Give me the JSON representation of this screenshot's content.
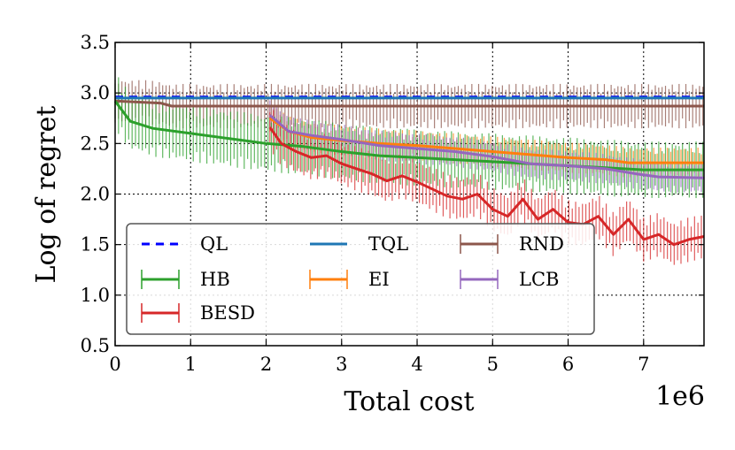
{
  "chart_data": {
    "type": "line",
    "title": "",
    "xlabel": "Total cost",
    "ylabel": "Log of regret",
    "x_multiplier_label": "1e6",
    "xlim": [
      0,
      7.8
    ],
    "ylim": [
      0.5,
      3.5
    ],
    "xticks": [
      0,
      1,
      2,
      3,
      4,
      5,
      6,
      7
    ],
    "yticks": [
      0.5,
      1.0,
      1.5,
      2.0,
      2.5,
      3.0,
      3.5
    ],
    "ytick_labels": [
      "0.5",
      "1.0",
      "1.5",
      "2.0",
      "2.5",
      "3.0",
      "3.5"
    ],
    "grid": true,
    "legend_position": "lower-left",
    "series": [
      {
        "name": "QL",
        "color": "#0000ff",
        "dashed": true,
        "x": [
          0,
          7.8
        ],
        "y": [
          2.96,
          2.96
        ]
      },
      {
        "name": "TQL",
        "color": "#1f77b4",
        "x": [
          0,
          7.8
        ],
        "y": [
          2.95,
          2.95
        ]
      },
      {
        "name": "RND",
        "color": "#8c564b",
        "x": [
          0,
          0.6,
          0.75,
          7.8
        ],
        "y": [
          2.92,
          2.9,
          2.87,
          2.87
        ],
        "error": 0.22
      },
      {
        "name": "HB",
        "color": "#2ca02c",
        "x": [
          0,
          0.2,
          0.5,
          1.0,
          1.5,
          1.8,
          2.0,
          2.5,
          3.0,
          3.5,
          4.0,
          4.5,
          5.0,
          5.5,
          6.0,
          6.5,
          7.0,
          7.8
        ],
        "y": [
          2.92,
          2.72,
          2.65,
          2.6,
          2.55,
          2.52,
          2.5,
          2.47,
          2.42,
          2.38,
          2.36,
          2.34,
          2.32,
          2.3,
          2.28,
          2.26,
          2.24,
          2.24
        ],
        "error": 0.28
      },
      {
        "name": "EI",
        "color": "#ff7f0e",
        "x": [
          2.05,
          2.3,
          2.6,
          3.0,
          3.5,
          4.0,
          4.5,
          5.0,
          5.5,
          6.0,
          6.5,
          6.8,
          7.8
        ],
        "y": [
          2.75,
          2.62,
          2.56,
          2.53,
          2.5,
          2.48,
          2.45,
          2.42,
          2.39,
          2.36,
          2.34,
          2.31,
          2.31
        ],
        "error": 0.15
      },
      {
        "name": "LCB",
        "color": "#9467bd",
        "x": [
          2.05,
          2.3,
          2.6,
          3.0,
          3.5,
          4.0,
          4.5,
          5.0,
          5.5,
          6.0,
          6.5,
          6.9,
          7.2,
          7.8
        ],
        "y": [
          2.78,
          2.62,
          2.58,
          2.54,
          2.48,
          2.45,
          2.42,
          2.37,
          2.3,
          2.28,
          2.25,
          2.2,
          2.17,
          2.16
        ],
        "error": 0.15
      },
      {
        "name": "BESD",
        "color": "#d62728",
        "x": [
          2.05,
          2.2,
          2.4,
          2.6,
          2.8,
          3.0,
          3.2,
          3.4,
          3.6,
          3.8,
          4.0,
          4.2,
          4.4,
          4.6,
          4.8,
          5.0,
          5.2,
          5.4,
          5.6,
          5.8,
          6.0,
          6.2,
          6.4,
          6.6,
          6.8,
          7.0,
          7.2,
          7.4,
          7.6,
          7.8
        ],
        "y": [
          2.66,
          2.5,
          2.42,
          2.36,
          2.38,
          2.3,
          2.25,
          2.2,
          2.13,
          2.18,
          2.12,
          2.05,
          1.98,
          1.95,
          2.0,
          1.85,
          1.78,
          1.95,
          1.75,
          1.85,
          1.72,
          1.7,
          1.78,
          1.6,
          1.75,
          1.55,
          1.6,
          1.5,
          1.55,
          1.58
        ],
        "error": 0.22
      }
    ]
  }
}
